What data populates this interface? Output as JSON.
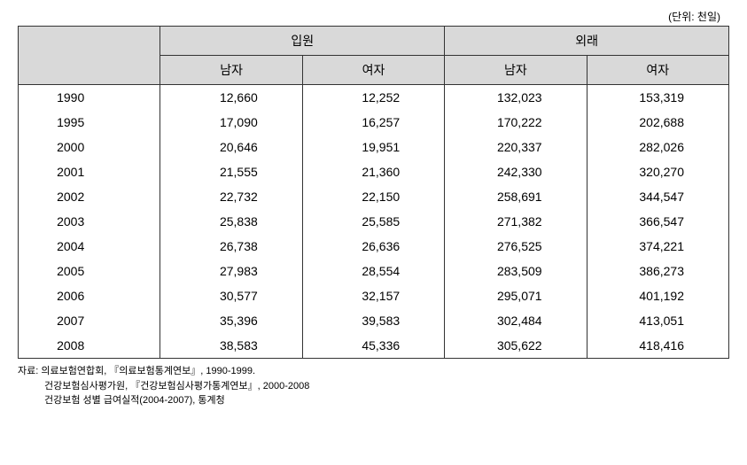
{
  "unit_label": "(단위: 천일)",
  "headers": {
    "group1": "입원",
    "group2": "외래",
    "sub1": "남자",
    "sub2": "여자",
    "sub3": "남자",
    "sub4": "여자"
  },
  "rows": [
    {
      "year": "1990",
      "c1": "12,660",
      "c2": "12,252",
      "c3": "132,023",
      "c4": "153,319"
    },
    {
      "year": "1995",
      "c1": "17,090",
      "c2": "16,257",
      "c3": "170,222",
      "c4": "202,688"
    },
    {
      "year": "2000",
      "c1": "20,646",
      "c2": "19,951",
      "c3": "220,337",
      "c4": "282,026"
    },
    {
      "year": "2001",
      "c1": "21,555",
      "c2": "21,360",
      "c3": "242,330",
      "c4": "320,270"
    },
    {
      "year": "2002",
      "c1": "22,732",
      "c2": "22,150",
      "c3": "258,691",
      "c4": "344,547"
    },
    {
      "year": "2003",
      "c1": "25,838",
      "c2": "25,585",
      "c3": "271,382",
      "c4": "366,547"
    },
    {
      "year": "2004",
      "c1": "26,738",
      "c2": "26,636",
      "c3": "276,525",
      "c4": "374,221"
    },
    {
      "year": "2005",
      "c1": "27,983",
      "c2": "28,554",
      "c3": "283,509",
      "c4": "386,273"
    },
    {
      "year": "2006",
      "c1": "30,577",
      "c2": "32,157",
      "c3": "295,071",
      "c4": "401,192"
    },
    {
      "year": "2007",
      "c1": "35,396",
      "c2": "39,583",
      "c3": "302,484",
      "c4": "413,051"
    },
    {
      "year": "2008",
      "c1": "38,583",
      "c2": "45,336",
      "c3": "305,622",
      "c4": "418,416"
    }
  ],
  "sources": {
    "label": "자료:",
    "line1": "의료보험연합회, 『의료보험통계연보』, 1990-1999.",
    "line2": "건강보험심사평가원, 『건강보험심사평가통계연보』, 2000-2008",
    "line3": "건강보험 성별 급여실적(2004-2007), 통계청"
  },
  "style": {
    "header_bg": "#d9d9d9",
    "border_color": "#333333",
    "font_size_table": 14,
    "font_size_unit": 12,
    "font_size_source": 11
  }
}
